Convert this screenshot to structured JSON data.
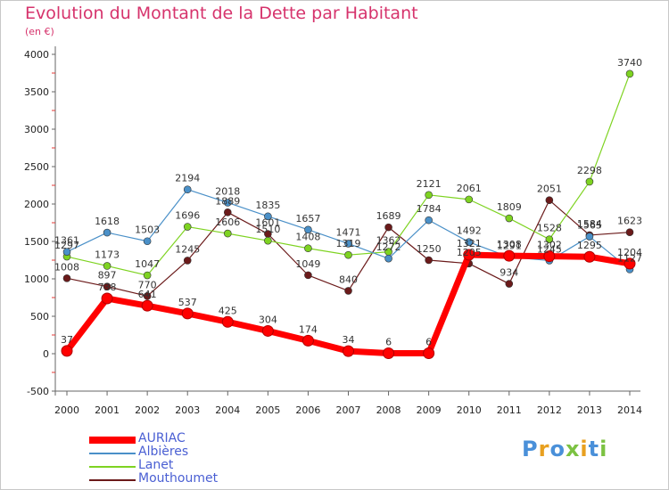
{
  "header": {
    "title": "Evolution du Montant de la Dette par Habitant",
    "subtitle": "(en €)"
  },
  "logo": {
    "text": "Proxiti",
    "colors": [
      "#4a90d9",
      "#e8a020",
      "#4a90d9",
      "#7cc242",
      "#e8a020",
      "#4a90d9",
      "#7cc242"
    ]
  },
  "chart_data": {
    "type": "line",
    "title": "Evolution du Montant de la Dette par Habitant",
    "subtitle": "(en €)",
    "x": [
      "2000",
      "2001",
      "2002",
      "2003",
      "2004",
      "2005",
      "2006",
      "2007",
      "2008",
      "2009",
      "2010",
      "2011",
      "2012",
      "2013",
      "2014"
    ],
    "ylim": [
      -500,
      4000
    ],
    "yticks": [
      -500,
      0,
      500,
      1000,
      1500,
      2000,
      2500,
      3000,
      3500,
      4000
    ],
    "grid": false,
    "legend_position": "bottom-left",
    "series": [
      {
        "name": "Mouthoumet",
        "color": "#6b1a1a",
        "width": 1.2,
        "marker": 4,
        "values": [
          1008,
          897,
          770,
          1245,
          1889,
          1601,
          1049,
          840,
          1689,
          1250,
          1205,
          934,
          2051,
          1584,
          1623
        ],
        "labels": [
          "1008",
          "897",
          "770",
          "1245",
          "1889",
          "1601",
          "1049",
          "840",
          "1689",
          "1250",
          "1205",
          "934",
          "2051",
          "1584",
          "1623"
        ]
      },
      {
        "name": "Lanet",
        "color": "#7ed321",
        "width": 1.2,
        "marker": 4,
        "values": [
          1297,
          1173,
          1047,
          1696,
          1606,
          1510,
          1408,
          1319,
          1362,
          2121,
          2061,
          1809,
          1528,
          2298,
          3740
        ],
        "labels": [
          "1297",
          "1173",
          "1047",
          "1696",
          "1606",
          "1510",
          "1408",
          "1319",
          "1362",
          "2121",
          "2061",
          "1809",
          "1528",
          "2298",
          "3740"
        ]
      },
      {
        "name": "Albières",
        "color": "#4a90c8",
        "width": 1.2,
        "marker": 4,
        "values": [
          1361,
          1618,
          1503,
          2194,
          2018,
          1835,
          1657,
          1471,
          1272,
          1784,
          1492,
          1291,
          1245,
          1565,
          1127
        ],
        "labels": [
          "1361",
          "1618",
          "1503",
          "2194",
          "2018",
          "1835",
          "1657",
          "1471",
          "1272",
          "1784",
          "1492",
          "1291",
          "1245",
          "1565",
          "1127"
        ]
      },
      {
        "name": "AURIAC",
        "color": "#ff0000",
        "width": 7,
        "marker": 6,
        "values": [
          37,
          738,
          641,
          537,
          425,
          304,
          174,
          34,
          6,
          6,
          1321,
          1308,
          1302,
          1295,
          1204
        ],
        "labels": [
          "37",
          "738",
          "641",
          "537",
          "425",
          "304",
          "174",
          "34",
          "6",
          "6",
          "1321",
          "1308",
          "1302",
          "1295",
          "1204"
        ]
      }
    ],
    "legend": [
      "AURIAC",
      "Albières",
      "Lanet",
      "Mouthoumet"
    ]
  }
}
